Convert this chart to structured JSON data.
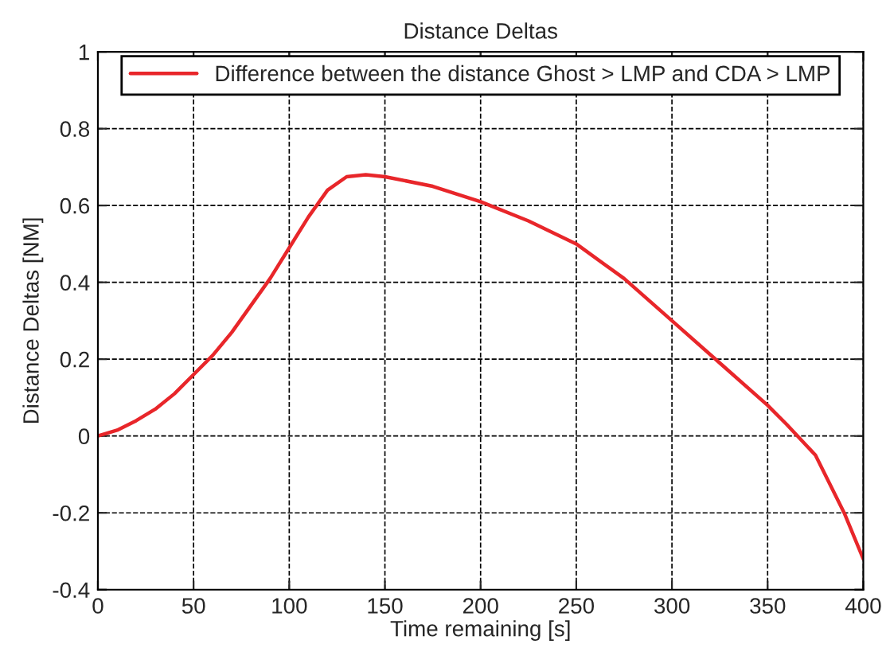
{
  "chart_data": {
    "type": "line",
    "title": "Distance Deltas",
    "xlabel": "Time remaining [s]",
    "ylabel": "Distance Deltas [NM]",
    "x": [
      0,
      10,
      20,
      30,
      40,
      50,
      60,
      70,
      80,
      90,
      100,
      110,
      120,
      130,
      140,
      150,
      175,
      200,
      225,
      250,
      275,
      300,
      325,
      350,
      360,
      375,
      390,
      400
    ],
    "series": [
      {
        "name": "Difference between the distance Ghost > LMP and CDA > LMP",
        "color": "#e8262a",
        "values": [
          0.0,
          0.015,
          0.04,
          0.07,
          0.11,
          0.16,
          0.21,
          0.27,
          0.34,
          0.41,
          0.49,
          0.57,
          0.64,
          0.675,
          0.68,
          0.675,
          0.65,
          0.61,
          0.56,
          0.5,
          0.41,
          0.3,
          0.19,
          0.08,
          0.03,
          -0.05,
          -0.2,
          -0.32
        ]
      }
    ],
    "xlim": [
      0,
      400
    ],
    "xticks": [
      0,
      50,
      100,
      150,
      200,
      250,
      300,
      350,
      400
    ],
    "ylim": [
      -0.4,
      1
    ],
    "yticks": [
      -0.4,
      -0.2,
      0,
      0.2,
      0.4,
      0.6,
      0.8,
      1
    ],
    "grid": true,
    "line_style": "solid",
    "legend": "top"
  }
}
